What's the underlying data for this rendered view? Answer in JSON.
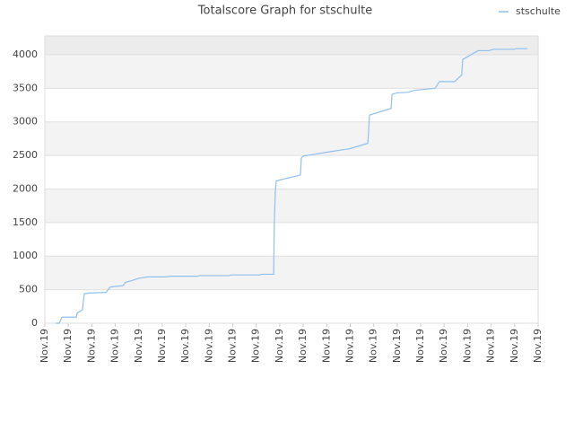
{
  "chart_data": {
    "type": "line",
    "title": "Totalscore Graph for stschulte",
    "x": [
      0.46,
      0.61,
      0.73,
      1.34,
      1.37,
      1.6,
      1.64,
      1.68,
      1.91,
      2.6,
      2.79,
      3.05,
      3.32,
      3.44,
      3.74,
      4.01,
      4.39,
      5.15,
      5.35,
      6.49,
      6.57,
      7.83,
      7.94,
      9.16,
      9.24,
      9.74,
      9.77,
      9.81,
      9.85,
      10.88,
      10.92,
      11.0,
      12.22,
      12.98,
      13.75,
      13.78,
      13.82,
      14.74,
      14.78,
      14.97,
      15.46,
      15.73,
      16.04,
      16.61,
      16.8,
      17.45,
      17.75,
      17.79,
      18.44,
      18.9,
      19.09,
      19.97,
      20.05,
      20.54
    ],
    "series": [
      {
        "name": "stschulte",
        "color": "#8fc0ee",
        "values": [
          0,
          0,
          90,
          90,
          150,
          200,
          330,
          440,
          450,
          460,
          540,
          550,
          560,
          610,
          640,
          670,
          690,
          690,
          700,
          700,
          710,
          710,
          720,
          720,
          730,
          730,
          1500,
          1950,
          2120,
          2210,
          2460,
          2490,
          2560,
          2600,
          2680,
          2850,
          3100,
          3200,
          3410,
          3430,
          3440,
          3470,
          3480,
          3500,
          3600,
          3600,
          3700,
          3930,
          4060,
          4060,
          4080,
          4080,
          4090,
          4090
        ]
      }
    ],
    "xlim": [
      0,
      21
    ],
    "xticks": [
      {
        "value": 0,
        "label": "Nov.19"
      },
      {
        "value": 1,
        "label": "Nov.19"
      },
      {
        "value": 2,
        "label": "Nov.19"
      },
      {
        "value": 3,
        "label": "Nov.19"
      },
      {
        "value": 4,
        "label": "Nov.19"
      },
      {
        "value": 5,
        "label": "Nov.19"
      },
      {
        "value": 6,
        "label": "Nov.19"
      },
      {
        "value": 7,
        "label": "Nov.19"
      },
      {
        "value": 8,
        "label": "Nov.19"
      },
      {
        "value": 9,
        "label": "Nov.19"
      },
      {
        "value": 10,
        "label": "Nov.19"
      },
      {
        "value": 11,
        "label": "Nov.19"
      },
      {
        "value": 12,
        "label": "Nov.19"
      },
      {
        "value": 13,
        "label": "Nov.19"
      },
      {
        "value": 14,
        "label": "Nov.19"
      },
      {
        "value": 15,
        "label": "Nov.19"
      },
      {
        "value": 16,
        "label": "Nov.19"
      },
      {
        "value": 17,
        "label": "Nov.19"
      },
      {
        "value": 18,
        "label": "Nov.19"
      },
      {
        "value": 19,
        "label": "Nov.19"
      },
      {
        "value": 20,
        "label": "Nov.19"
      },
      {
        "value": 21,
        "label": "Nov.19"
      }
    ],
    "ylim": [
      0,
      4280
    ],
    "yticks": [
      0,
      500,
      1000,
      1500,
      2000,
      2500,
      3000,
      3500,
      4000
    ],
    "grid": true,
    "legend": "top-right"
  }
}
